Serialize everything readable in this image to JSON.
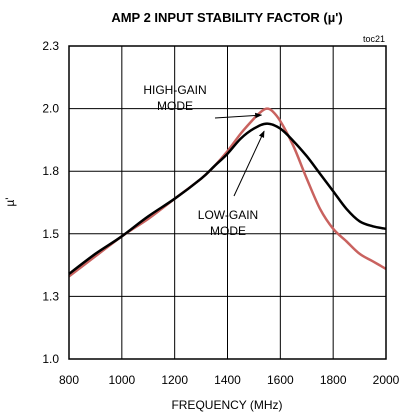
{
  "chart_data": {
    "type": "line",
    "title": "AMP 2 INPUT STABILITY FACTOR (µ')",
    "chart_tag": "toc21",
    "xlabel": "FREQUENCY (MHz)",
    "ylabel": "µ'",
    "xlim": [
      800,
      2000
    ],
    "ylim": [
      1.0,
      2.25
    ],
    "x_ticks": [
      800,
      1000,
      1200,
      1400,
      1600,
      1800,
      2000
    ],
    "x_tick_labels": [
      "800",
      "1000",
      "1200",
      "1400",
      "1600",
      "1800",
      "2000"
    ],
    "y_ticks": [
      1.0,
      1.25,
      1.5,
      1.75,
      2.0,
      2.25
    ],
    "y_tick_labels": [
      "1.0",
      "1.3",
      "1.5",
      "1.8",
      "2.0",
      "2.3"
    ],
    "grid": true,
    "legend": "none",
    "series": [
      {
        "name": "HIGH-GAIN MODE",
        "color": "#c9625f",
        "x": [
          800,
          900,
          1000,
          1100,
          1200,
          1300,
          1350,
          1400,
          1450,
          1500,
          1530,
          1550,
          1570,
          1600,
          1650,
          1700,
          1750,
          1800,
          1850,
          1900,
          1950,
          2000
        ],
        "y": [
          1.33,
          1.41,
          1.49,
          1.56,
          1.64,
          1.72,
          1.77,
          1.83,
          1.9,
          1.96,
          1.99,
          2.0,
          1.99,
          1.95,
          1.85,
          1.72,
          1.6,
          1.52,
          1.47,
          1.42,
          1.39,
          1.36
        ]
      },
      {
        "name": "LOW-GAIN MODE",
        "color": "#000000",
        "x": [
          800,
          900,
          1000,
          1100,
          1200,
          1300,
          1350,
          1400,
          1450,
          1500,
          1550,
          1600,
          1650,
          1700,
          1750,
          1800,
          1850,
          1900,
          1950,
          2000
        ],
        "y": [
          1.34,
          1.42,
          1.49,
          1.57,
          1.64,
          1.72,
          1.77,
          1.82,
          1.88,
          1.92,
          1.94,
          1.92,
          1.87,
          1.81,
          1.74,
          1.67,
          1.6,
          1.55,
          1.53,
          1.52
        ]
      }
    ],
    "annotations": [
      {
        "lines": [
          "HIGH-GAIN",
          "MODE"
        ],
        "points_to": [
          1540,
          1.99
        ]
      },
      {
        "lines": [
          "LOW-GAIN",
          "MODE"
        ],
        "points_to": [
          1550,
          1.93
        ]
      }
    ]
  }
}
